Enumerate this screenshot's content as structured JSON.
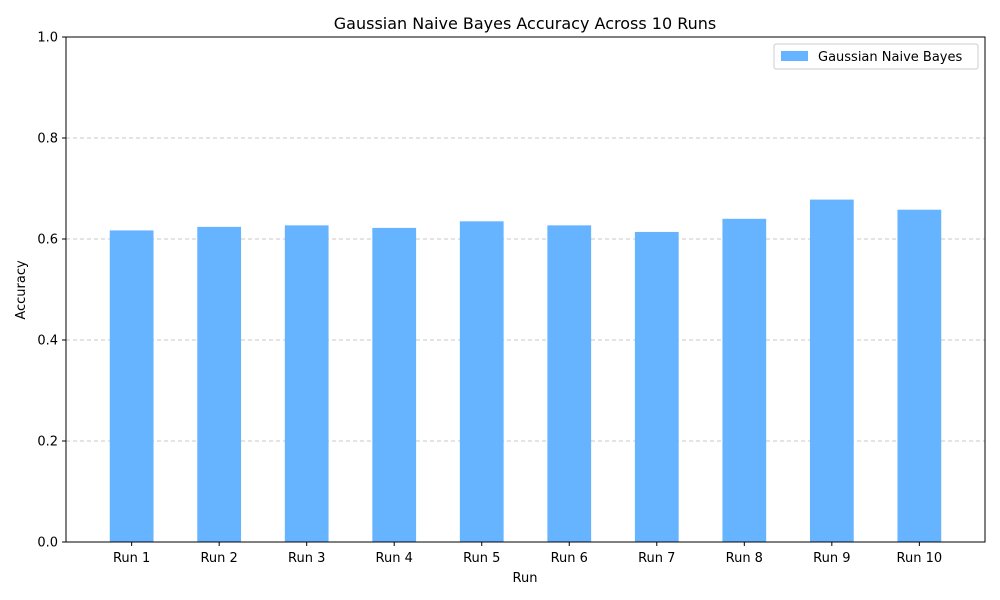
{
  "chart_data": {
    "type": "bar",
    "title": "Gaussian Naive Bayes Accuracy Across 10 Runs",
    "xlabel": "Run",
    "ylabel": "Accuracy",
    "categories": [
      "Run 1",
      "Run 2",
      "Run 3",
      "Run 4",
      "Run 5",
      "Run 6",
      "Run 7",
      "Run 8",
      "Run 9",
      "Run 10"
    ],
    "series": [
      {
        "name": "Gaussian Naive Bayes",
        "color": "#66b3ff",
        "values": [
          0.617,
          0.624,
          0.627,
          0.622,
          0.635,
          0.627,
          0.614,
          0.64,
          0.678,
          0.658
        ]
      }
    ],
    "ylim": [
      0,
      1
    ],
    "yticks": [
      0.0,
      0.2,
      0.4,
      0.6,
      0.8,
      1.0
    ],
    "ytick_labels": [
      "0.0",
      "0.2",
      "0.4",
      "0.6",
      "0.8",
      "1.0"
    ],
    "grid": {
      "y": true,
      "style": "dashed",
      "color": "#c8c8c8"
    },
    "legend": {
      "position": "top-right"
    }
  }
}
